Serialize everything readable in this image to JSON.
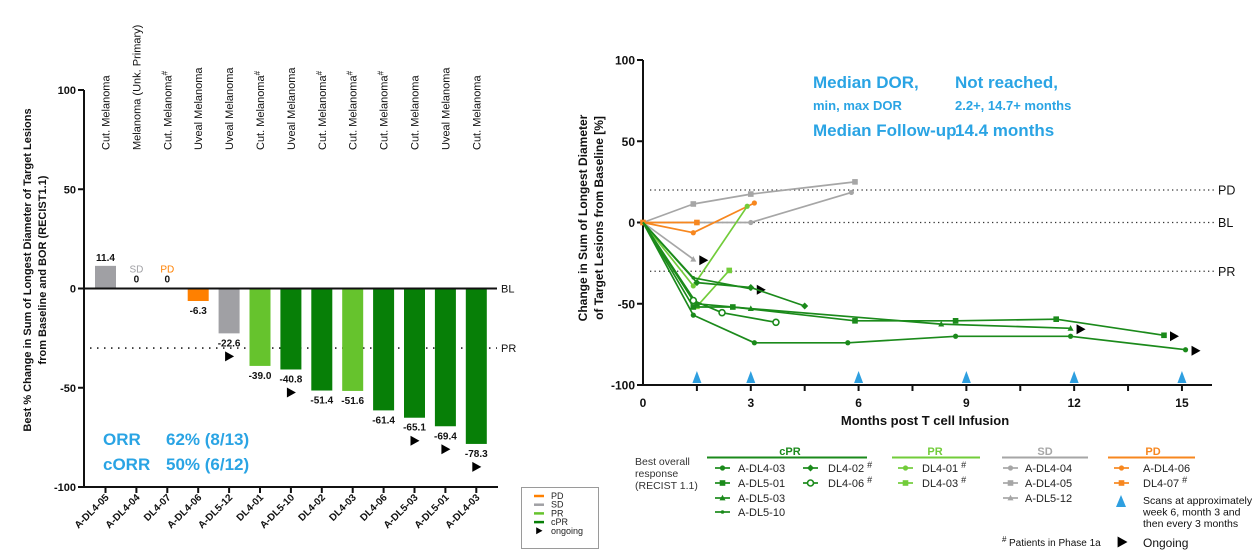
{
  "colors": {
    "bar": {
      "cPR": "#077f07",
      "PR": "#66c32d",
      "SD": "#a0a0a4",
      "PD": "#ff8000"
    },
    "line": {
      "cPR": "#1b8a1b",
      "PR": "#72cc3a",
      "SD": "#a6a6a6",
      "PD": "#f7871f"
    },
    "annotation": "#2aa4e4",
    "scan": "#2e9fe0",
    "ongoing": "#000000"
  },
  "chart_data": [
    {
      "type": "bar",
      "title": "",
      "xlabel": "",
      "ylabel_lines": [
        "Best % Change in Sum of Longest Diameter of Target Lesions",
        "from Baseline and BOR (RECIST1.1)"
      ],
      "ylim": [
        -100,
        100
      ],
      "yticks": [
        100,
        50,
        0,
        -50,
        -100
      ],
      "grid": false,
      "categories": [
        "A-DL4-05",
        "A-DL4-04",
        "DL4-07",
        "A-DL4-06",
        "A-DL5-12",
        "DL4-01",
        "A-DL5-10",
        "DL4-02",
        "DL4-03",
        "DL4-06",
        "A-DL5-03",
        "A-DL5-01",
        "A-DL4-03"
      ],
      "indications": [
        "Cut. Melanoma",
        "Melanoma (Unk. Primary)",
        "Cut. Melanoma",
        "Uveal Melanoma",
        "Uveal Melanoma",
        "Cut. Melanoma",
        "Uveal Melanoma",
        "Cut. Melanoma",
        "Cut. Melanoma",
        "Cut. Melanoma",
        "Cut. Melanoma",
        "Uveal Melanoma",
        "Cut. Melanoma"
      ],
      "phase1a": [
        false,
        false,
        true,
        false,
        false,
        true,
        false,
        true,
        true,
        true,
        false,
        false,
        false
      ],
      "phase1a_mark": "#",
      "values": [
        11.4,
        0,
        0,
        -6.3,
        -22.6,
        -39.0,
        -40.8,
        -51.4,
        -51.6,
        -61.4,
        -65.1,
        -69.4,
        -78.3
      ],
      "value_labels": [
        "11.4",
        "0",
        "0",
        "-6.3",
        "-22.6",
        "-39.0",
        "-40.8",
        "-51.4",
        "-51.6",
        "-61.4",
        "-65.1",
        "-69.4",
        "-78.3"
      ],
      "value_tags": [
        "",
        "SD",
        "PD",
        "",
        "",
        "",
        "",
        "",
        "",
        "",
        "",
        "",
        ""
      ],
      "response": [
        "SD",
        "SD",
        "PD",
        "PD",
        "SD",
        "PR",
        "cPR",
        "cPR",
        "PR",
        "cPR",
        "cPR",
        "cPR",
        "cPR"
      ],
      "ongoing": [
        false,
        false,
        false,
        false,
        true,
        false,
        true,
        false,
        false,
        false,
        true,
        true,
        true
      ],
      "reference_lines": [
        {
          "label": "BL",
          "y": 0,
          "style": "solid"
        },
        {
          "label": "PR",
          "y": -30,
          "style": "dotted"
        }
      ],
      "annotations": [
        {
          "label": "ORR",
          "value": "62% (8/13)"
        },
        {
          "label": "cORR",
          "value": "50% (6/12)"
        }
      ],
      "legend": {
        "position": "bottom-right",
        "entries": [
          {
            "label": "PD",
            "key": "PD",
            "kind": "line"
          },
          {
            "label": "SD",
            "key": "SD",
            "kind": "line"
          },
          {
            "label": "PR",
            "key": "PR",
            "kind": "line"
          },
          {
            "label": "cPR",
            "key": "cPR",
            "kind": "line"
          },
          {
            "label": "ongoing",
            "key": "ongoing",
            "kind": "arrow"
          }
        ]
      }
    },
    {
      "type": "line",
      "title": "",
      "xlabel": "Months post T cell Infusion",
      "ylabel_lines": [
        "Change in Sum of Longest Diameter",
        "of Target Lesions from Baseline [%]"
      ],
      "xlim": [
        0,
        16
      ],
      "ylim": [
        -100,
        100
      ],
      "xticks": [
        0,
        3,
        6,
        9,
        12,
        15
      ],
      "yticks": [
        100,
        50,
        0,
        -50,
        -100
      ],
      "grid": false,
      "reference_lines": [
        {
          "label": "PD",
          "y": 20,
          "style": "dotted"
        },
        {
          "label": "BL",
          "y": 0,
          "style": "dotted"
        },
        {
          "label": "PR",
          "y": -30,
          "style": "dotted"
        }
      ],
      "scan_times": [
        1.5,
        3,
        6,
        9,
        12,
        15
      ],
      "series": [
        {
          "name": "A-DL4-04",
          "group": "SD",
          "marker": "circle",
          "phase1a": false,
          "ongoing": false,
          "points": [
            [
              0,
              0
            ],
            [
              3.0,
              0
            ],
            [
              5.8,
              18.5
            ]
          ]
        },
        {
          "name": "A-DL4-05",
          "group": "SD",
          "marker": "square",
          "phase1a": false,
          "ongoing": false,
          "points": [
            [
              0,
              0
            ],
            [
              1.4,
              11.4
            ],
            [
              3.0,
              17.5
            ],
            [
              5.9,
              25
            ]
          ]
        },
        {
          "name": "A-DL5-12",
          "group": "SD",
          "marker": "triangle",
          "phase1a": false,
          "ongoing": true,
          "points": [
            [
              0,
              0
            ],
            [
              1.4,
              -22.6
            ]
          ]
        },
        {
          "name": "A-DL4-06",
          "group": "PD",
          "marker": "circle",
          "phase1a": false,
          "ongoing": false,
          "points": [
            [
              0,
              0
            ],
            [
              1.4,
              -6.3
            ],
            [
              3.1,
              12
            ]
          ]
        },
        {
          "name": "DL4-07",
          "group": "PD",
          "marker": "square",
          "phase1a": true,
          "ongoing": false,
          "points": [
            [
              0,
              0
            ],
            [
              1.5,
              0
            ]
          ]
        },
        {
          "name": "DL4-01",
          "group": "PR",
          "marker": "circle",
          "phase1a": true,
          "ongoing": false,
          "points": [
            [
              0,
              0
            ],
            [
              1.4,
              -39.0
            ],
            [
              2.9,
              10
            ]
          ]
        },
        {
          "name": "DL4-03",
          "group": "PR",
          "marker": "square",
          "phase1a": true,
          "ongoing": false,
          "points": [
            [
              0,
              0
            ],
            [
              1.5,
              -51.6
            ],
            [
              2.4,
              -29.5
            ]
          ]
        },
        {
          "name": "A-DL4-03",
          "group": "cPR",
          "marker": "circle",
          "phase1a": false,
          "ongoing": true,
          "points": [
            [
              0,
              0
            ],
            [
              1.4,
              -57
            ],
            [
              3.1,
              -74
            ],
            [
              5.7,
              -74
            ],
            [
              8.7,
              -70
            ],
            [
              11.9,
              -70
            ],
            [
              15.1,
              -78.3
            ]
          ]
        },
        {
          "name": "A-DL5-01",
          "group": "cPR",
          "marker": "square",
          "phase1a": false,
          "ongoing": true,
          "points": [
            [
              0,
              0
            ],
            [
              1.4,
              -52
            ],
            [
              2.5,
              -52
            ],
            [
              5.9,
              -60.5
            ],
            [
              8.7,
              -60.5
            ],
            [
              11.5,
              -59.5
            ],
            [
              14.5,
              -69.4
            ]
          ]
        },
        {
          "name": "A-DL5-03",
          "group": "cPR",
          "marker": "triangle",
          "phase1a": false,
          "ongoing": true,
          "points": [
            [
              0,
              0
            ],
            [
              1.5,
              -50
            ],
            [
              3.0,
              -53
            ],
            [
              8.3,
              -62.5
            ],
            [
              11.9,
              -65.1
            ]
          ]
        },
        {
          "name": "A-DL5-10",
          "group": "cPR",
          "marker": "small-circle",
          "phase1a": false,
          "ongoing": true,
          "points": [
            [
              0,
              0
            ],
            [
              1.4,
              -34
            ],
            [
              3.0,
              -40.8
            ]
          ]
        },
        {
          "name": "DL4-02",
          "group": "cPR",
          "marker": "diamond",
          "phase1a": true,
          "ongoing": false,
          "points": [
            [
              0,
              0
            ],
            [
              1.5,
              -37
            ],
            [
              3.0,
              -40
            ],
            [
              4.5,
              -51.4
            ]
          ]
        },
        {
          "name": "DL4-06",
          "group": "cPR",
          "marker": "open-circle",
          "phase1a": true,
          "ongoing": false,
          "points": [
            [
              0,
              0
            ],
            [
              1.4,
              -48
            ],
            [
              2.2,
              -55.5
            ],
            [
              3.7,
              -61.4
            ]
          ]
        }
      ],
      "annotations": [
        {
          "label": "Median DOR,",
          "value": "Not reached,",
          "size": "large"
        },
        {
          "label": "min, max DOR",
          "value": "2.2+, 14.7+ months",
          "size": "small"
        },
        {
          "label": "Median Follow-up",
          "value": "14.4 months",
          "size": "large"
        }
      ],
      "legend": {
        "position": "bottom",
        "title_lines": [
          "Best overall",
          "response",
          "(RECIST 1.1)"
        ],
        "groups": [
          {
            "title": "cPR",
            "key": "cPR",
            "columns": [
              [
                "A-DL4-03",
                "A-DL5-01",
                "A-DL5-03",
                "A-DL5-10"
              ],
              [
                "DL4-02",
                "DL4-06"
              ]
            ]
          },
          {
            "title": "PR",
            "key": "PR",
            "columns": [
              [
                "DL4-01",
                "DL4-03"
              ]
            ]
          },
          {
            "title": "SD",
            "key": "SD",
            "columns": [
              [
                "A-DL4-04",
                "A-DL4-05",
                "A-DL5-12"
              ]
            ]
          },
          {
            "title": "PD",
            "key": "PD",
            "columns": [
              [
                "A-DL4-06",
                "DL4-07"
              ]
            ]
          }
        ],
        "scan_note_lines": [
          "Scans at approximately",
          "week 6, month 3 and",
          "then every 3 months"
        ],
        "footnote_mark": "#",
        "footnote": "Patients in Phase 1a",
        "ongoing_label": "Ongoing"
      }
    }
  ]
}
